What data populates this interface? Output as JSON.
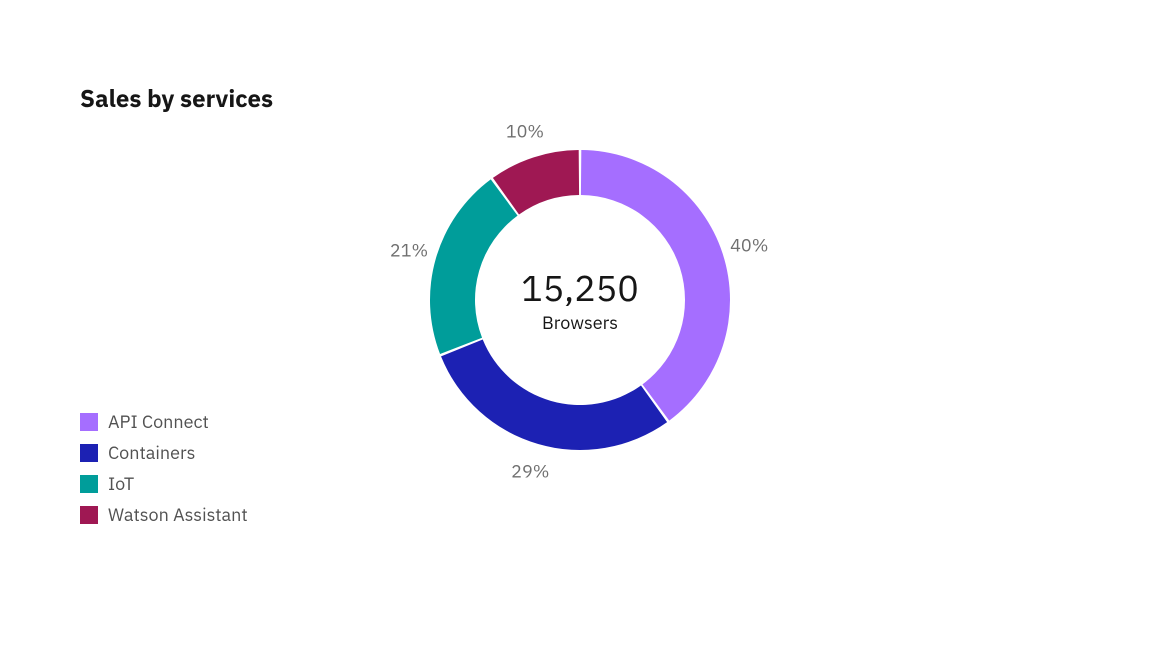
{
  "chart": {
    "type": "donut",
    "title": "Sales by services",
    "center_value": "15,250",
    "center_label": "Browsers",
    "background_color": "#ffffff",
    "title_color": "#161616",
    "title_fontsize": 24,
    "title_fontweight": 700,
    "center_value_color": "#161616",
    "center_value_fontsize": 36,
    "center_label_fontsize": 18,
    "pct_label_color": "#6f6f6f",
    "pct_label_fontsize": 18,
    "legend_label_color": "#525252",
    "legend_label_fontsize": 18,
    "donut_outer_radius": 150,
    "donut_inner_radius": 105,
    "slice_gap_degrees": 1,
    "slices": [
      {
        "name": "API Connect",
        "value": 40,
        "pct_label": "40%",
        "color": "#a56eff"
      },
      {
        "name": "Containers",
        "value": 29,
        "pct_label": "29%",
        "color": "#1c21b3"
      },
      {
        "name": "IoT",
        "value": 21,
        "pct_label": "21%",
        "color": "#009d9a"
      },
      {
        "name": "Watson Assistant",
        "value": 10,
        "pct_label": "10%",
        "color": "#9f1853"
      }
    ],
    "legend": [
      {
        "label": "API Connect",
        "color": "#a56eff"
      },
      {
        "label": "Containers",
        "color": "#1c21b3"
      },
      {
        "label": "IoT",
        "color": "#009d9a"
      },
      {
        "label": "Watson Assistant",
        "color": "#9f1853"
      }
    ]
  }
}
